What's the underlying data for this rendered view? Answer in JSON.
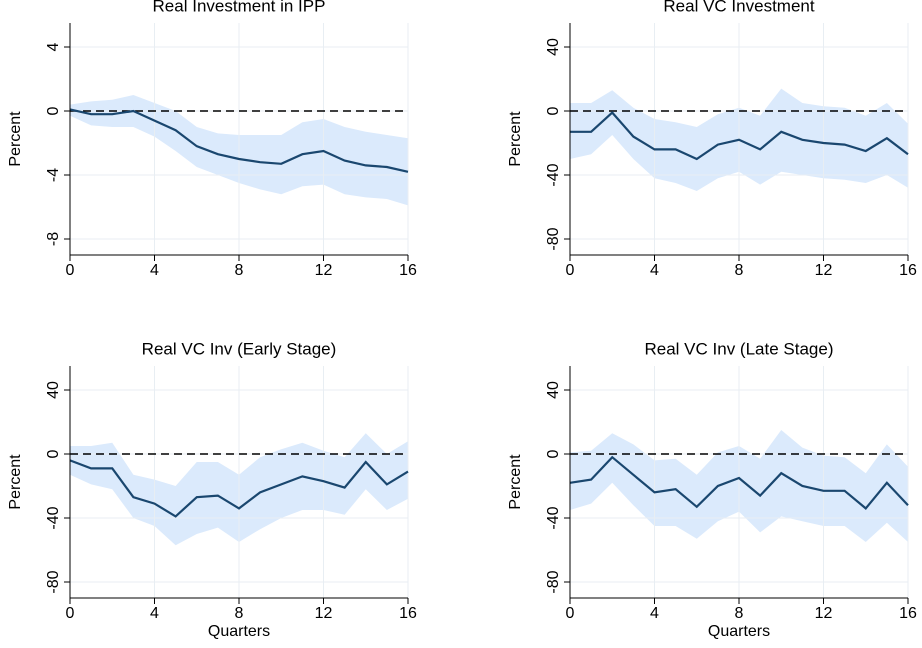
{
  "chart_data": [
    {
      "type": "line",
      "title": "Real Investment in IPP",
      "ylabel": "Percent",
      "x": [
        0,
        1,
        2,
        3,
        4,
        5,
        6,
        7,
        8,
        9,
        10,
        11,
        12,
        13,
        14,
        15,
        16
      ],
      "values": [
        0.1,
        -0.2,
        -0.2,
        0,
        -0.6,
        -1.2,
        -2.2,
        -2.7,
        -3.0,
        -3.2,
        -3.3,
        -2.7,
        -2.5,
        -3.1,
        -3.4,
        -3.5,
        -3.8
      ],
      "upper": [
        0.4,
        0.6,
        0.7,
        1.0,
        0.5,
        0.0,
        -1.0,
        -1.4,
        -1.5,
        -1.5,
        -1.5,
        -0.7,
        -0.5,
        -1.0,
        -1.3,
        -1.5,
        -1.7
      ],
      "lower": [
        -0.3,
        -0.9,
        -1.0,
        -1.0,
        -1.6,
        -2.5,
        -3.5,
        -4.0,
        -4.5,
        -4.9,
        -5.2,
        -4.7,
        -4.6,
        -5.2,
        -5.4,
        -5.5,
        -5.9
      ],
      "color": "#1a476f",
      "band_color": "#dbeafc",
      "xlim": [
        0,
        16
      ],
      "xticks": [
        0,
        4,
        8,
        12,
        16
      ],
      "ylim": [
        -9,
        5.5
      ],
      "yticks": [
        4,
        0,
        -4,
        -8
      ],
      "grid": true,
      "zero_line": true
    },
    {
      "type": "line",
      "title": "Real VC Investment",
      "ylabel": "Percent",
      "x": [
        0,
        1,
        2,
        3,
        4,
        5,
        6,
        7,
        8,
        9,
        10,
        11,
        12,
        13,
        14,
        15,
        16
      ],
      "values": [
        -13,
        -13,
        -1,
        -16,
        -24,
        -24,
        -30,
        -21,
        -18,
        -24,
        -13,
        -18,
        -20,
        -21,
        -25,
        -17,
        -27
      ],
      "upper": [
        5,
        5,
        13,
        2,
        -5,
        -7,
        -10,
        -2,
        2,
        -3,
        14,
        5,
        3,
        2,
        -3,
        5,
        -8
      ],
      "lower": [
        -30,
        -27,
        -15,
        -30,
        -42,
        -45,
        -50,
        -42,
        -38,
        -46,
        -38,
        -40,
        -42,
        -43,
        -45,
        -40,
        -48
      ],
      "color": "#1a476f",
      "band_color": "#dbeafc",
      "xlim": [
        0,
        16
      ],
      "xticks": [
        0,
        4,
        8,
        12,
        16
      ],
      "ylim": [
        -90,
        55
      ],
      "yticks": [
        40,
        0,
        -40,
        -80
      ],
      "grid": true,
      "zero_line": true
    },
    {
      "type": "line",
      "title": "Real VC Inv (Early Stage)",
      "ylabel": "Percent",
      "xlabel": "Quarters",
      "x": [
        0,
        1,
        2,
        3,
        4,
        5,
        6,
        7,
        8,
        9,
        10,
        11,
        12,
        13,
        14,
        15,
        16
      ],
      "values": [
        -4,
        -9,
        -9,
        -27,
        -31,
        -39,
        -27,
        -26,
        -34,
        -24,
        -19,
        -14,
        -17,
        -21,
        -5,
        -19,
        -11
      ],
      "upper": [
        5,
        5,
        7,
        -13,
        -16,
        -20,
        -5,
        -5,
        -13,
        -2,
        3,
        7,
        2,
        -2,
        13,
        0,
        8
      ],
      "lower": [
        -13,
        -19,
        -22,
        -40,
        -45,
        -57,
        -50,
        -46,
        -55,
        -47,
        -40,
        -35,
        -35,
        -38,
        -22,
        -35,
        -28
      ],
      "color": "#1a476f",
      "band_color": "#dbeafc",
      "xlim": [
        0,
        16
      ],
      "xticks": [
        0,
        4,
        8,
        12,
        16
      ],
      "ylim": [
        -90,
        55
      ],
      "yticks": [
        40,
        0,
        -40,
        -80
      ],
      "grid": true,
      "zero_line": true
    },
    {
      "type": "line",
      "title": "Real VC Inv (Late Stage)",
      "ylabel": "Percent",
      "xlabel": "Quarters",
      "x": [
        0,
        1,
        2,
        3,
        4,
        5,
        6,
        7,
        8,
        9,
        10,
        11,
        12,
        13,
        14,
        15,
        16
      ],
      "values": [
        -18,
        -16,
        -2,
        -13,
        -24,
        -22,
        -33,
        -20,
        -15,
        -26,
        -12,
        -20,
        -23,
        -23,
        -34,
        -18,
        -32
      ],
      "upper": [
        1,
        2,
        13,
        6,
        -4,
        -3,
        -13,
        1,
        5,
        -3,
        15,
        4,
        -1,
        -2,
        -12,
        6,
        -8
      ],
      "lower": [
        -35,
        -31,
        -18,
        -32,
        -45,
        -45,
        -53,
        -42,
        -36,
        -49,
        -39,
        -42,
        -45,
        -45,
        -55,
        -43,
        -55
      ],
      "color": "#1a476f",
      "band_color": "#dbeafc",
      "xlim": [
        0,
        16
      ],
      "xticks": [
        0,
        4,
        8,
        12,
        16
      ],
      "ylim": [
        -90,
        55
      ],
      "yticks": [
        40,
        0,
        -40,
        -80
      ],
      "grid": true,
      "zero_line": true
    }
  ]
}
